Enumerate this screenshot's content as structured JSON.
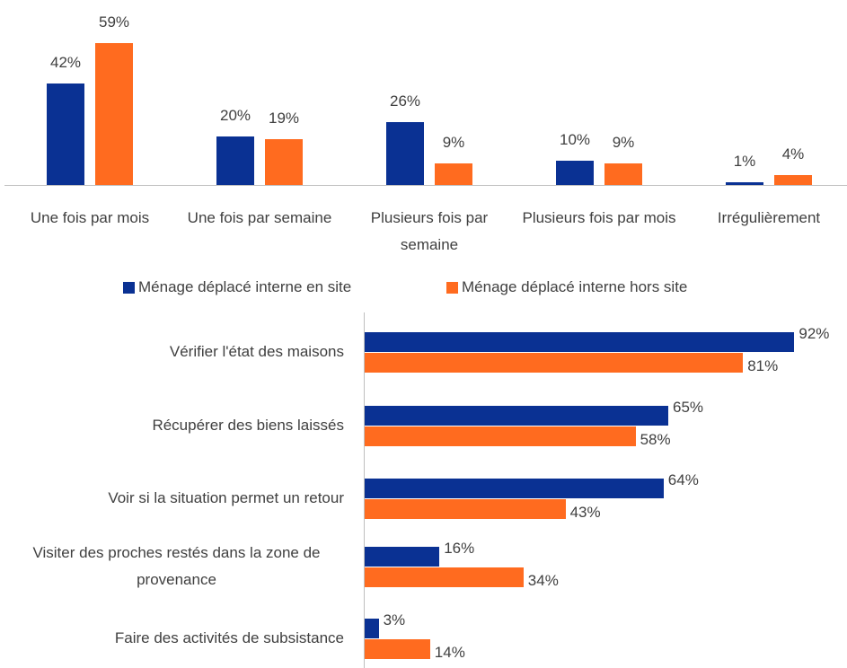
{
  "chart_data": [
    {
      "type": "bar",
      "categories": [
        "Une fois par mois",
        "Une fois par semaine",
        "Plusieurs fois par semaine",
        "Plusieurs fois par mois",
        "Irrégulièrement"
      ],
      "series": [
        {
          "name": "Ménage déplacé interne en site",
          "color": "#0a3193",
          "values": [
            42,
            20,
            26,
            10,
            1
          ],
          "value_labels": [
            "42%",
            "20%",
            "26%",
            "10%",
            "1%"
          ]
        },
        {
          "name": "Ménage déplacé interne hors site",
          "color": "#ff6b1f",
          "values": [
            59,
            19,
            9,
            9,
            4
          ],
          "value_labels": [
            "59%",
            "19%",
            "9%",
            "9%",
            "4%"
          ]
        }
      ],
      "legend": "bottom"
    },
    {
      "type": "barh",
      "categories": [
        "Vérifier l'état des maisons",
        "Récupérer des biens laissés",
        "Voir si la situation permet un retour",
        "Visiter des proches restés dans la zone de provenance",
        "Faire des activités de subsistance"
      ],
      "series": [
        {
          "color": "#0a3193",
          "values": [
            92,
            65,
            64,
            16,
            3
          ],
          "value_labels": [
            "92%",
            "65%",
            "64%",
            "16%",
            "3%"
          ]
        },
        {
          "color": "#ff6b1f",
          "values": [
            81,
            58,
            43,
            34,
            14
          ],
          "value_labels": [
            "81%",
            "58%",
            "43%",
            "34%",
            "14%"
          ]
        }
      ]
    }
  ]
}
